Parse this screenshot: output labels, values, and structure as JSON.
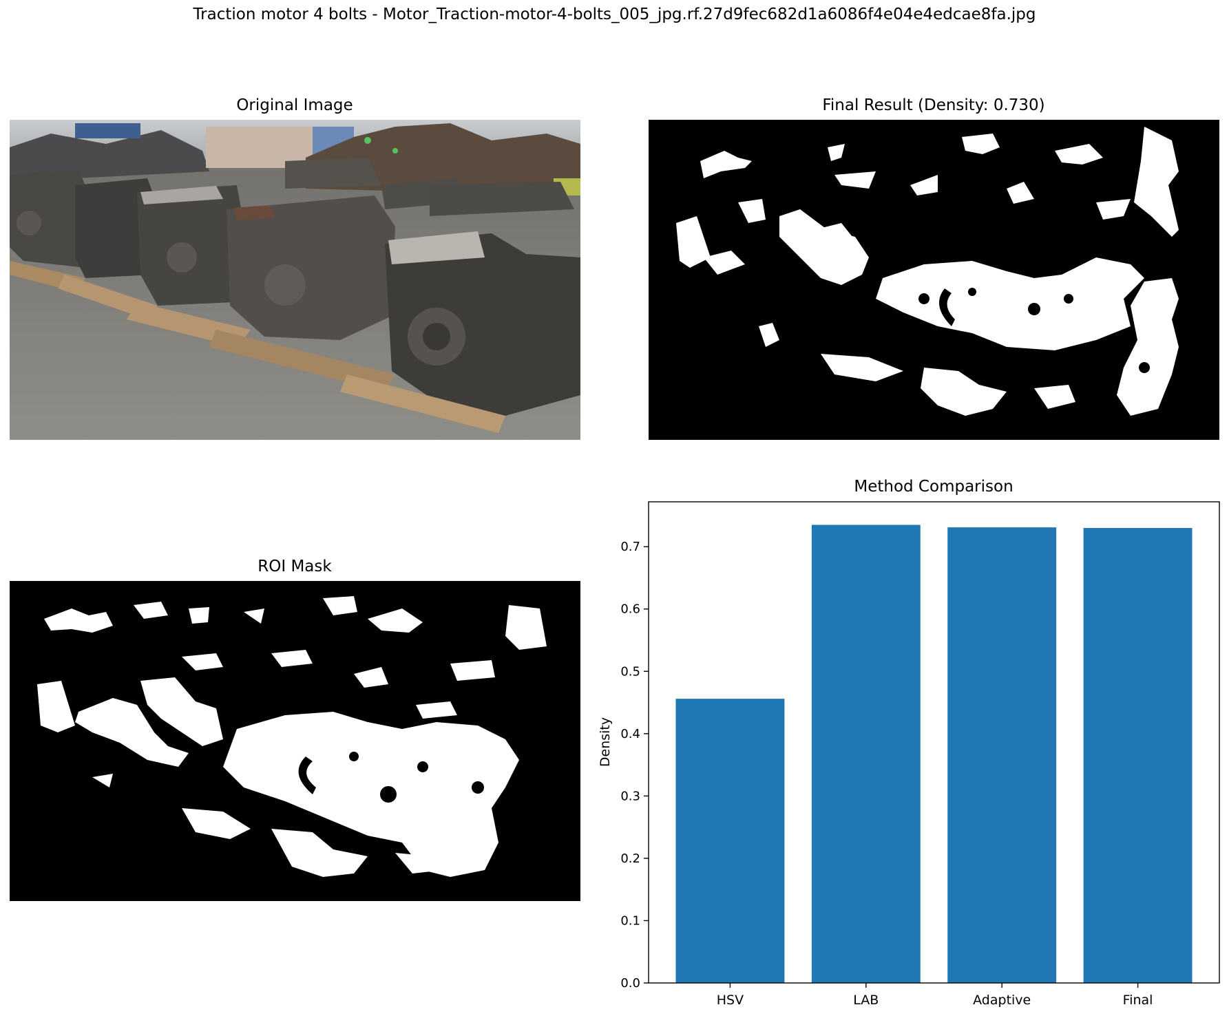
{
  "figure": {
    "suptitle": "Traction motor 4 bolts - Motor_Traction-motor-4-bolts_005_jpg.rf.27d9fec682d1a6086f4e04e4edcae8fa.jpg"
  },
  "panels": {
    "original": {
      "title": "Original Image"
    },
    "final_result": {
      "title": "Final Result (Density: 0.730)"
    },
    "roi_mask": {
      "title": "ROI Mask"
    },
    "comparison": {
      "title": "Method Comparison"
    }
  },
  "colors": {
    "bar": "#1f77b4",
    "mask_fg": "#ffffff",
    "mask_bg": "#000000"
  },
  "chart_data": {
    "type": "bar",
    "title": "Method Comparison",
    "categories": [
      "HSV",
      "LAB",
      "Adaptive",
      "Final"
    ],
    "values": [
      0.456,
      0.735,
      0.731,
      0.73
    ],
    "xlabel": "",
    "ylabel": "Density",
    "ylim": [
      0,
      0.772
    ],
    "yticks": [
      0.0,
      0.1,
      0.2,
      0.3,
      0.4,
      0.5,
      0.6,
      0.7
    ],
    "ytick_labels": [
      "0.0",
      "0.1",
      "0.2",
      "0.3",
      "0.4",
      "0.5",
      "0.6",
      "0.7"
    ],
    "grid": false,
    "legend": "none"
  }
}
